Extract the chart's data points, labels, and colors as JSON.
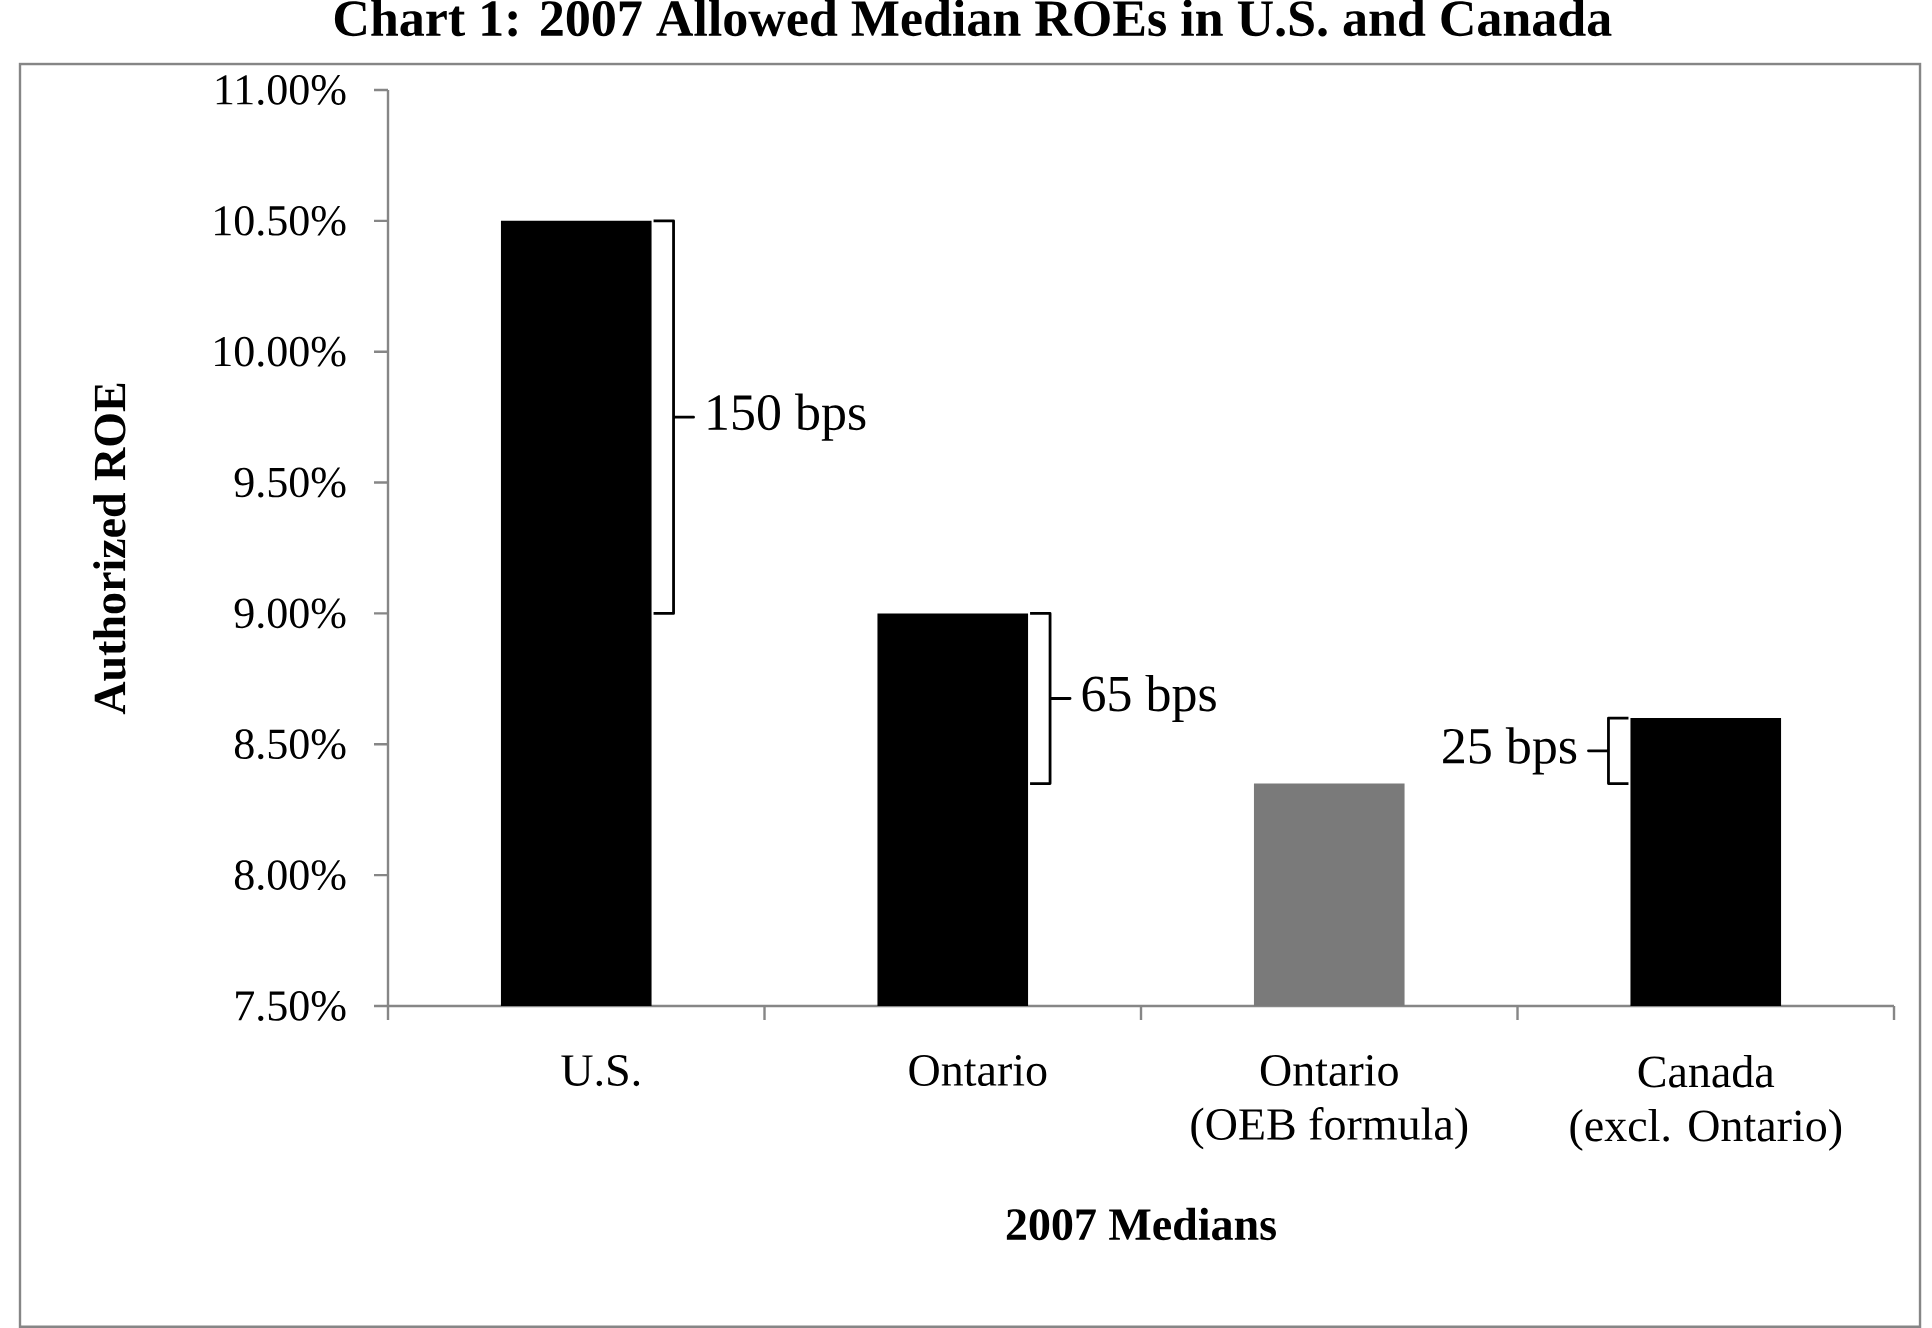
{
  "chart_data": {
    "type": "bar",
    "title": "Chart 1: 2007 Allowed Median ROEs in U.S. and Canada",
    "xlabel": "2007 Medians",
    "ylabel": "Authorized ROE",
    "categories": [
      "U.S.",
      "Ontario",
      "Ontario (OEB formula)",
      "Canada (excl. Ontario)"
    ],
    "values": [
      10.5,
      9.0,
      8.35,
      8.6
    ],
    "colors": [
      "#000000",
      "#000000",
      "#7a7a7a",
      "#000000"
    ],
    "ylim": [
      7.5,
      11
    ],
    "yticks": [
      {
        "value": 7.5,
        "label": "7.50%"
      },
      {
        "value": 8,
        "label": "8.00%"
      },
      {
        "value": 8.5,
        "label": "8.50%"
      },
      {
        "value": 9,
        "label": "9.00%"
      },
      {
        "value": 9.5,
        "label": "9.50%"
      },
      {
        "value": 10,
        "label": "10.00%"
      },
      {
        "value": 10.5,
        "label": "10.50%"
      },
      {
        "value": 11,
        "label": "11.00%"
      }
    ],
    "annotations": [
      "150 bps",
      "65 bps",
      "25 bps"
    ]
  }
}
